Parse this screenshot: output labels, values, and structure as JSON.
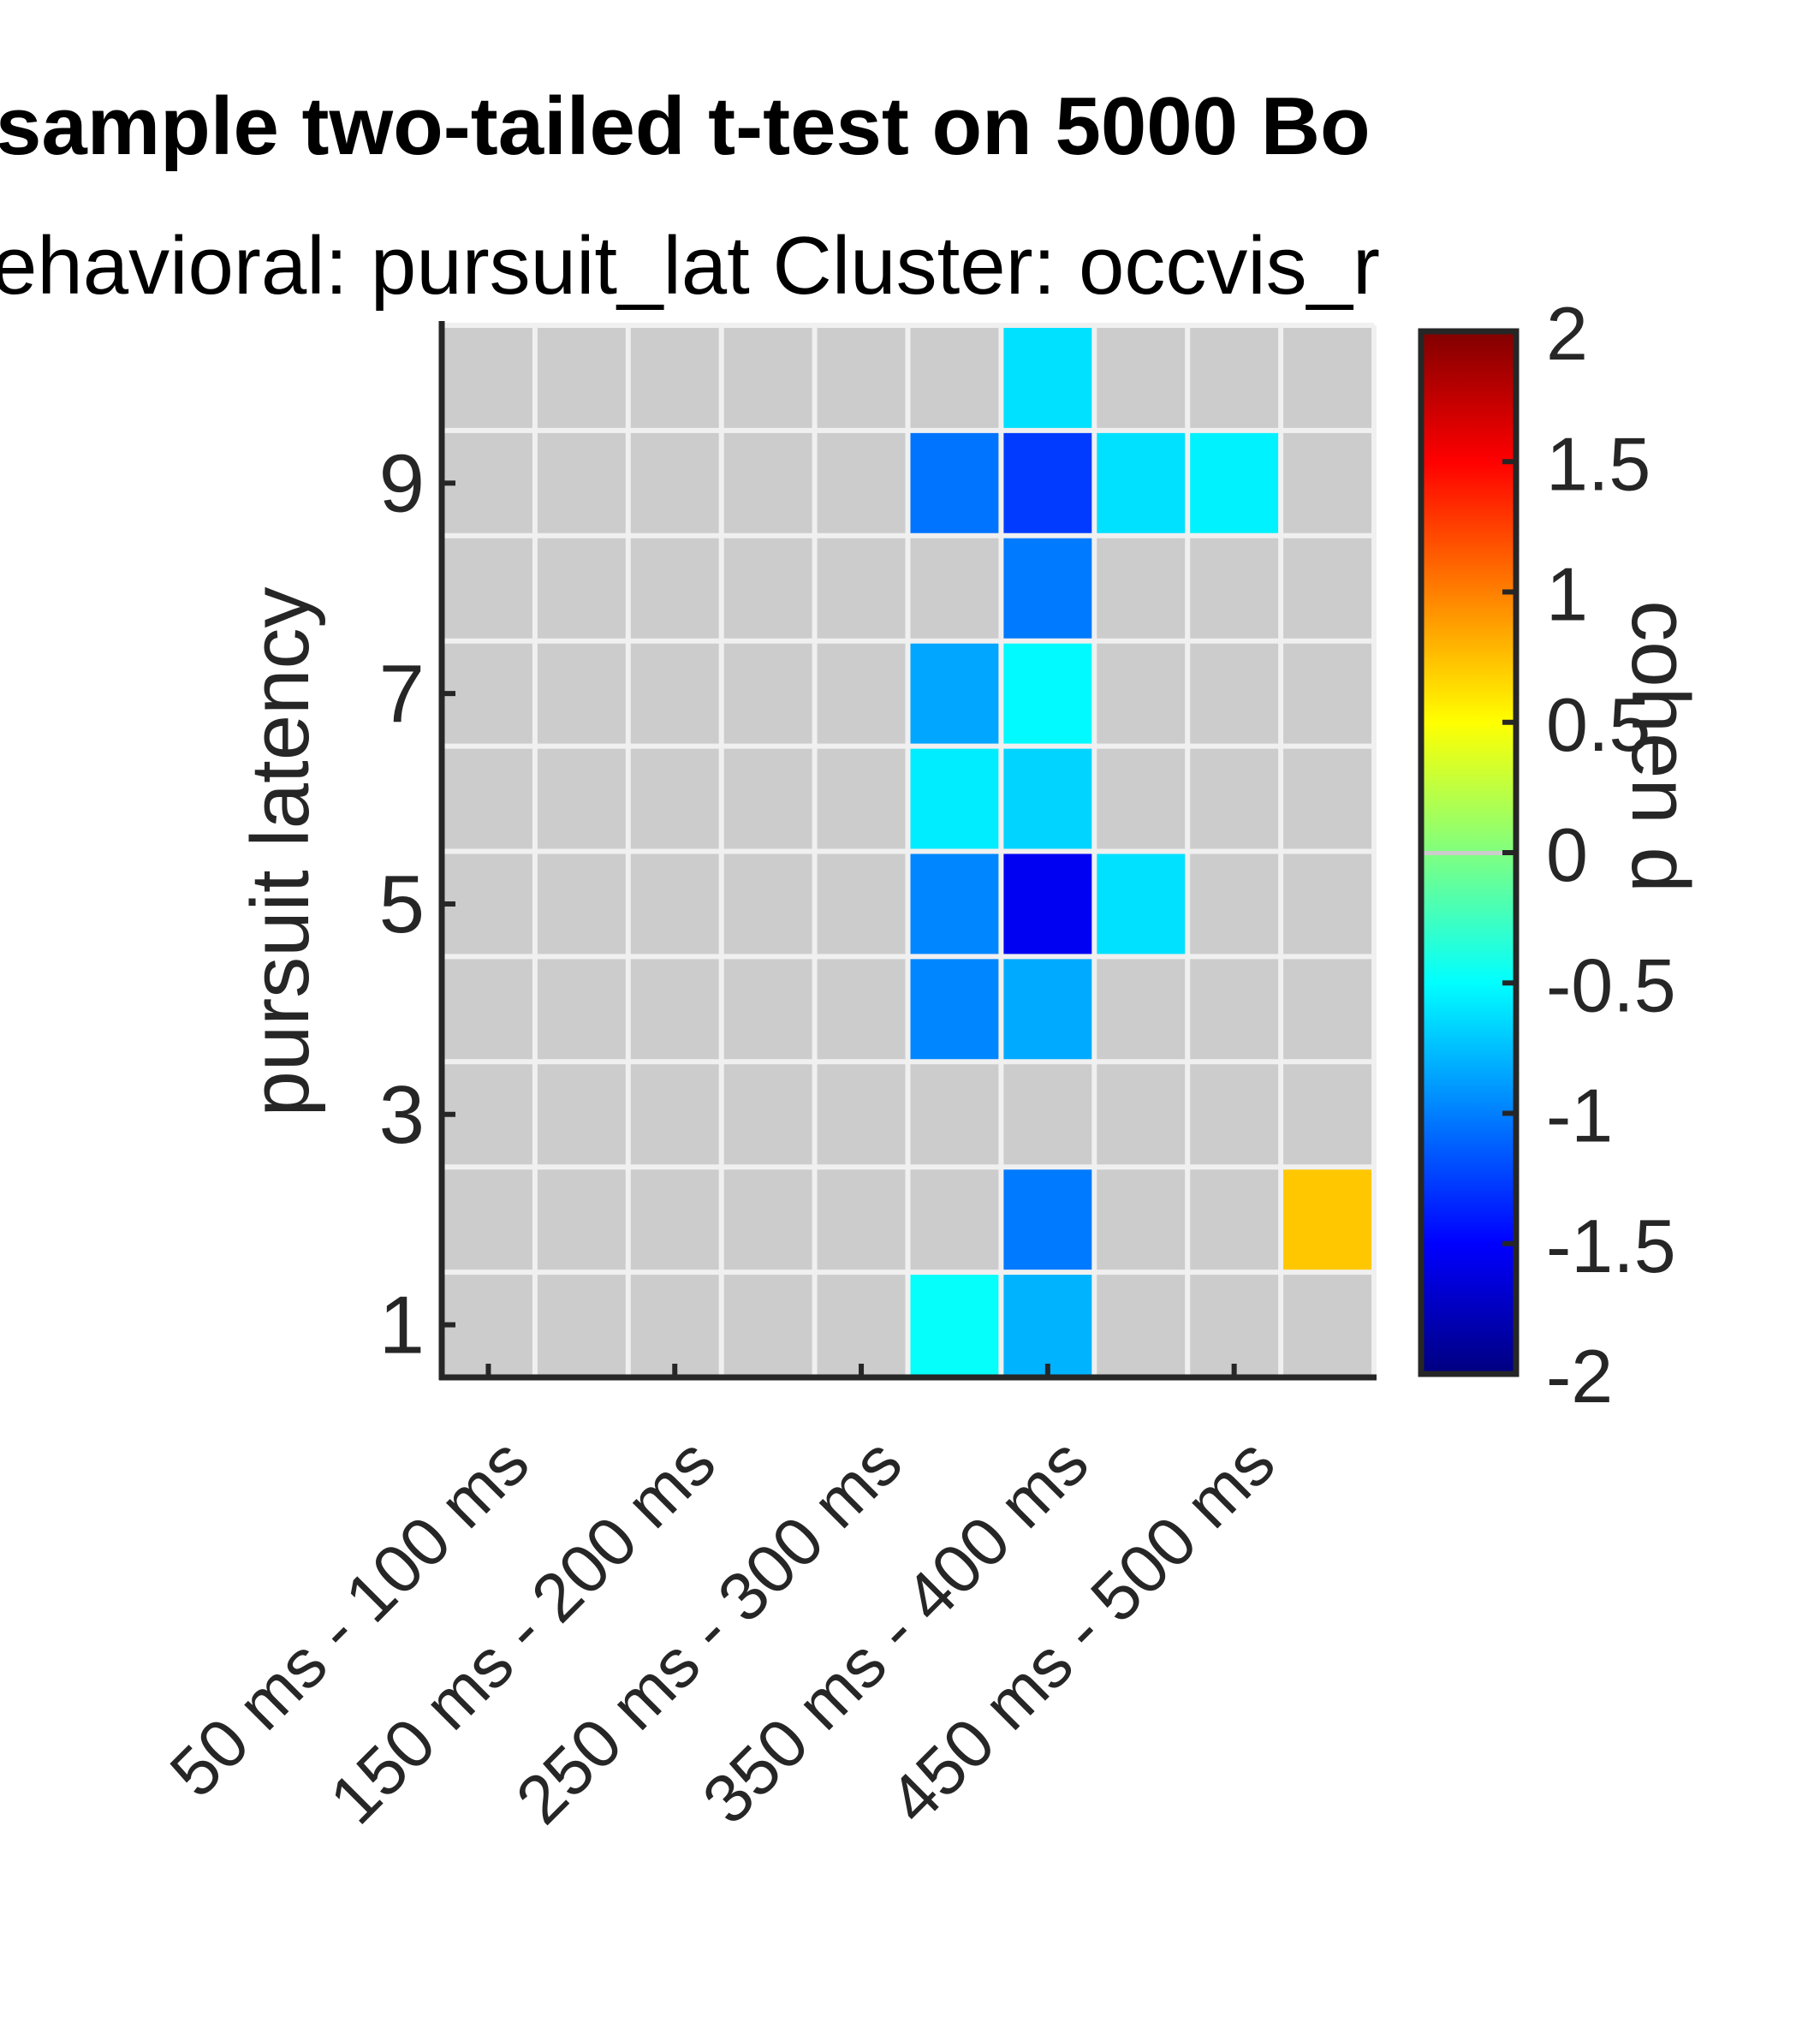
{
  "chart_data": {
    "type": "heatmap",
    "title": "sample two-tailed t-test on 5000 Bo",
    "subtitle": "ehavioral: pursuit_lat Cluster: occvis_r",
    "ylabel": "pursuit latency",
    "colorbar_label": "cohen d",
    "n_cols": 10,
    "n_rows": 10,
    "x_tick_labels": [
      "50 ms - 100 ms",
      "150 ms - 200 ms",
      "250 ms - 300 ms",
      "350 ms - 400 ms",
      "450 ms - 500 ms"
    ],
    "x_tick_cols": [
      1,
      3,
      5,
      7,
      9
    ],
    "y_ticks": [
      1,
      3,
      5,
      7,
      9
    ],
    "y_tick_labels": [
      "1",
      "3",
      "5",
      "7",
      "9"
    ],
    "colormap": "jet",
    "clim": [
      -2,
      2
    ],
    "colorbar_ticks": [
      2,
      1.5,
      1,
      0.5,
      0,
      -0.5,
      -1,
      -1.5,
      -2
    ],
    "colorbar_tick_labels": [
      "2",
      "1.5",
      "1",
      "0.5",
      "0",
      "-0.5",
      "-1",
      "-1.5",
      "-2"
    ],
    "nonsignificant_color": "#cccccc",
    "grid_color": "#f0f0f0",
    "cells": [
      {
        "col": 7,
        "row": 10,
        "value": -0.62
      },
      {
        "col": 6,
        "row": 9,
        "value": -1.05
      },
      {
        "col": 7,
        "row": 9,
        "value": -1.27
      },
      {
        "col": 8,
        "row": 9,
        "value": -0.62
      },
      {
        "col": 9,
        "row": 9,
        "value": -0.55
      },
      {
        "col": 7,
        "row": 8,
        "value": -1.02
      },
      {
        "col": 6,
        "row": 7,
        "value": -0.85
      },
      {
        "col": 7,
        "row": 7,
        "value": -0.52
      },
      {
        "col": 6,
        "row": 6,
        "value": -0.57
      },
      {
        "col": 7,
        "row": 6,
        "value": -0.67
      },
      {
        "col": 6,
        "row": 5,
        "value": -0.97
      },
      {
        "col": 7,
        "row": 5,
        "value": -1.55
      },
      {
        "col": 8,
        "row": 5,
        "value": -0.62
      },
      {
        "col": 6,
        "row": 4,
        "value": -0.97
      },
      {
        "col": 7,
        "row": 4,
        "value": -0.83
      },
      {
        "col": 7,
        "row": 2,
        "value": -1.02
      },
      {
        "col": 10,
        "row": 2,
        "value": 0.72
      },
      {
        "col": 6,
        "row": 1,
        "value": -0.48
      },
      {
        "col": 7,
        "row": 1,
        "value": -0.8
      }
    ]
  }
}
